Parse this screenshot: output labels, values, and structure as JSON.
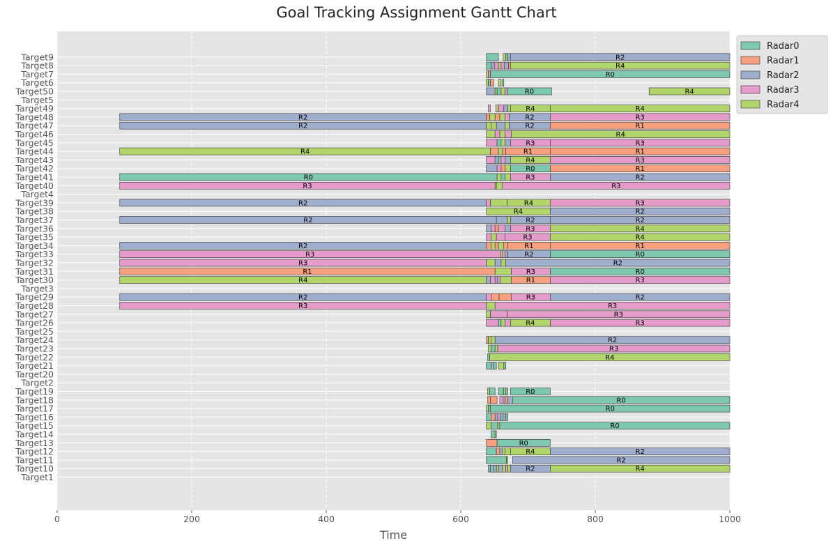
{
  "chart_data": {
    "type": "gantt",
    "title": "Goal Tracking Assignment Gantt Chart",
    "xlabel": "Time",
    "ylabel": "",
    "xlim": [
      0,
      1000
    ],
    "xticks": [
      0,
      200,
      400,
      600,
      800,
      1000
    ],
    "grid": true,
    "legend_position": "top-right",
    "categories": [
      "Target1",
      "Target10",
      "Target11",
      "Target12",
      "Target13",
      "Target14",
      "Target15",
      "Target16",
      "Target17",
      "Target18",
      "Target19",
      "Target2",
      "Target20",
      "Target21",
      "Target22",
      "Target23",
      "Target24",
      "Target25",
      "Target26",
      "Target27",
      "Target28",
      "Target29",
      "Target3",
      "Target30",
      "Target31",
      "Target32",
      "Target33",
      "Target34",
      "Target35",
      "Target36",
      "Target37",
      "Target38",
      "Target39",
      "Target4",
      "Target40",
      "Target41",
      "Target42",
      "Target43",
      "Target44",
      "Target45",
      "Target46",
      "Target47",
      "Target48",
      "Target49",
      "Target5",
      "Target50",
      "Target6",
      "Target7",
      "Target8",
      "Target9"
    ],
    "series": [
      {
        "name": "Radar0",
        "color": "#7fc8b0"
      },
      {
        "name": "Radar1",
        "color": "#f6a07f"
      },
      {
        "name": "Radar2",
        "color": "#a0aece"
      },
      {
        "name": "Radar3",
        "color": "#e69ccb"
      },
      {
        "name": "Radar4",
        "color": "#b2d56b"
      }
    ],
    "bar_labels": [
      "R0",
      "R1",
      "R2",
      "R3",
      "R4"
    ],
    "tasks": {
      "Target9": [
        [
          638,
          656,
          0
        ],
        [
          663,
          667,
          4
        ],
        [
          667,
          670,
          0
        ],
        [
          670,
          674,
          2
        ],
        [
          674,
          1000,
          2,
          "R2"
        ]
      ],
      "Target8": [
        [
          638,
          645,
          0
        ],
        [
          645,
          650,
          2
        ],
        [
          650,
          656,
          3
        ],
        [
          656,
          660,
          4
        ],
        [
          660,
          665,
          3
        ],
        [
          665,
          671,
          2
        ],
        [
          671,
          674,
          1
        ],
        [
          674,
          1000,
          4,
          "R4"
        ]
      ],
      "Target7": [
        [
          638,
          641,
          4
        ],
        [
          641,
          644,
          3
        ],
        [
          644,
          1000,
          0,
          "R0"
        ]
      ],
      "Target6": [
        [
          638,
          641,
          4
        ],
        [
          641,
          644,
          0
        ],
        [
          644,
          649,
          1
        ],
        [
          656,
          660,
          4
        ],
        [
          662,
          664,
          0
        ]
      ],
      "Target50": [
        [
          638,
          651,
          2
        ],
        [
          651,
          654,
          4
        ],
        [
          654,
          660,
          0
        ],
        [
          660,
          666,
          4
        ],
        [
          666,
          669,
          3
        ],
        [
          669,
          735,
          0,
          "R0"
        ],
        [
          880,
          1000,
          4,
          "R4"
        ]
      ],
      "Target49": [
        [
          641,
          644,
          3
        ],
        [
          652,
          656,
          4
        ],
        [
          656,
          664,
          3
        ],
        [
          664,
          670,
          2
        ],
        [
          670,
          674,
          4
        ],
        [
          674,
          733,
          4,
          "R4"
        ],
        [
          733,
          1000,
          4,
          "R4"
        ]
      ],
      "Target48": [
        [
          93,
          638,
          2,
          "R2"
        ],
        [
          638,
          643,
          1
        ],
        [
          643,
          651,
          4
        ],
        [
          651,
          658,
          1
        ],
        [
          658,
          666,
          4
        ],
        [
          666,
          672,
          3
        ],
        [
          672,
          733,
          2,
          "R2"
        ],
        [
          733,
          1000,
          3,
          "R3"
        ]
      ],
      "Target47": [
        [
          93,
          638,
          2,
          "R2"
        ],
        [
          638,
          645,
          4
        ],
        [
          645,
          653,
          4
        ],
        [
          653,
          666,
          2
        ],
        [
          666,
          672,
          4
        ],
        [
          672,
          733,
          2,
          "R2"
        ],
        [
          733,
          1000,
          1,
          "R1"
        ]
      ],
      "Target46": [
        [
          638,
          651,
          4
        ],
        [
          651,
          658,
          3
        ],
        [
          658,
          666,
          4
        ],
        [
          666,
          675,
          3
        ],
        [
          675,
          1000,
          4,
          "R4"
        ]
      ],
      "Target45": [
        [
          638,
          654,
          3
        ],
        [
          654,
          660,
          0
        ],
        [
          660,
          666,
          4
        ],
        [
          666,
          674,
          2
        ],
        [
          674,
          733,
          3,
          "R3"
        ],
        [
          733,
          1000,
          3,
          "R3"
        ]
      ],
      "Target44": [
        [
          93,
          644,
          4,
          "R4"
        ],
        [
          644,
          656,
          1
        ],
        [
          656,
          662,
          4
        ],
        [
          662,
          667,
          1
        ],
        [
          667,
          733,
          1,
          "R1"
        ],
        [
          733,
          1000,
          1,
          "R1"
        ]
      ],
      "Target43": [
        [
          638,
          651,
          3
        ],
        [
          651,
          656,
          2
        ],
        [
          656,
          660,
          0
        ],
        [
          660,
          666,
          3
        ],
        [
          666,
          674,
          2
        ],
        [
          674,
          733,
          4,
          "R4"
        ],
        [
          733,
          1000,
          3,
          "R3"
        ]
      ],
      "Target42": [
        [
          638,
          654,
          2
        ],
        [
          654,
          660,
          3
        ],
        [
          660,
          666,
          1
        ],
        [
          666,
          674,
          4
        ],
        [
          674,
          733,
          0,
          "R0"
        ],
        [
          733,
          1000,
          1,
          "R1"
        ]
      ],
      "Target41": [
        [
          93,
          654,
          0,
          "R0"
        ],
        [
          654,
          660,
          4
        ],
        [
          660,
          666,
          0
        ],
        [
          666,
          674,
          4
        ],
        [
          674,
          733,
          3,
          "R3"
        ],
        [
          733,
          1000,
          2,
          "R2"
        ]
      ],
      "Target40": [
        [
          93,
          651,
          3,
          "R3"
        ],
        [
          651,
          653,
          4
        ],
        [
          653,
          662,
          4
        ],
        [
          662,
          1000,
          3,
          "R3"
        ]
      ],
      "Target39": [
        [
          93,
          638,
          2,
          "R2"
        ],
        [
          638,
          644,
          3
        ],
        [
          644,
          669,
          4
        ],
        [
          669,
          733,
          4,
          "R4"
        ],
        [
          733,
          1000,
          3,
          "R3"
        ]
      ],
      "Target38": [
        [
          638,
          733,
          4,
          "R4"
        ],
        [
          733,
          1000,
          2,
          "R2"
        ]
      ],
      "Target37": [
        [
          93,
          653,
          2,
          "R2"
        ],
        [
          653,
          669,
          2
        ],
        [
          669,
          674,
          4
        ],
        [
          674,
          733,
          2,
          "R2"
        ],
        [
          733,
          1000,
          2,
          "R2"
        ]
      ],
      "Target36": [
        [
          638,
          645,
          2
        ],
        [
          645,
          651,
          3
        ],
        [
          651,
          656,
          1
        ],
        [
          656,
          666,
          3
        ],
        [
          666,
          674,
          2
        ],
        [
          674,
          733,
          3,
          "R3"
        ],
        [
          733,
          1000,
          4,
          "R4"
        ]
      ],
      "Target35": [
        [
          638,
          645,
          3
        ],
        [
          645,
          653,
          4
        ],
        [
          653,
          666,
          3
        ],
        [
          666,
          733,
          3,
          "R3"
        ],
        [
          733,
          1000,
          4,
          "R4"
        ]
      ],
      "Target34": [
        [
          93,
          638,
          2,
          "R2"
        ],
        [
          638,
          645,
          1
        ],
        [
          645,
          651,
          4
        ],
        [
          651,
          656,
          1
        ],
        [
          656,
          664,
          4
        ],
        [
          664,
          670,
          1
        ],
        [
          670,
          733,
          1,
          "R1"
        ],
        [
          733,
          1000,
          1,
          "R1"
        ]
      ],
      "Target33": [
        [
          93,
          659,
          3,
          "R3"
        ],
        [
          659,
          662,
          4
        ],
        [
          662,
          666,
          3
        ],
        [
          666,
          670,
          2
        ],
        [
          670,
          733,
          2,
          "R2"
        ],
        [
          733,
          1000,
          0,
          "R0"
        ]
      ],
      "Target32": [
        [
          93,
          638,
          3,
          "R3"
        ],
        [
          638,
          651,
          4
        ],
        [
          651,
          660,
          2
        ],
        [
          660,
          667,
          4
        ],
        [
          667,
          1000,
          2,
          "R2"
        ]
      ],
      "Target31": [
        [
          93,
          651,
          1,
          "R1"
        ],
        [
          651,
          675,
          4
        ],
        [
          675,
          733,
          3,
          "R3"
        ],
        [
          733,
          1000,
          0,
          "R0"
        ]
      ],
      "Target30": [
        [
          93,
          638,
          4,
          "R4"
        ],
        [
          638,
          644,
          2
        ],
        [
          644,
          651,
          3
        ],
        [
          651,
          655,
          2
        ],
        [
          655,
          659,
          3
        ],
        [
          659,
          675,
          4
        ],
        [
          675,
          733,
          1,
          "R1"
        ],
        [
          733,
          1000,
          3,
          "R3"
        ]
      ],
      "Target29": [
        [
          93,
          638,
          2,
          "R2"
        ],
        [
          638,
          645,
          3
        ],
        [
          645,
          657,
          1
        ],
        [
          657,
          675,
          1
        ],
        [
          675,
          733,
          3,
          "R3"
        ],
        [
          733,
          1000,
          2,
          "R2"
        ]
      ],
      "Target28": [
        [
          93,
          638,
          3,
          "R3"
        ],
        [
          638,
          651,
          4
        ],
        [
          651,
          1000,
          3,
          "R3"
        ]
      ],
      "Target27": [
        [
          638,
          644,
          4
        ],
        [
          644,
          669,
          3
        ],
        [
          669,
          1000,
          3,
          "R3"
        ]
      ],
      "Target26": [
        [
          638,
          656,
          3
        ],
        [
          656,
          660,
          0
        ],
        [
          660,
          666,
          4
        ],
        [
          666,
          674,
          3
        ],
        [
          674,
          733,
          4,
          "R4"
        ],
        [
          733,
          1000,
          3,
          "R3"
        ]
      ],
      "Target24": [
        [
          638,
          641,
          1
        ],
        [
          641,
          645,
          4
        ],
        [
          645,
          651,
          4
        ],
        [
          651,
          1000,
          2,
          "R2"
        ]
      ],
      "Target23": [
        [
          641,
          645,
          4
        ],
        [
          645,
          651,
          0
        ],
        [
          651,
          655,
          4
        ],
        [
          655,
          1000,
          3,
          "R3"
        ]
      ],
      "Target22": [
        [
          640,
          643,
          0
        ],
        [
          643,
          1000,
          4,
          "R4"
        ]
      ],
      "Target21": [
        [
          638,
          645,
          0
        ],
        [
          645,
          649,
          2
        ],
        [
          649,
          653,
          0
        ],
        [
          656,
          664,
          4
        ],
        [
          664,
          667,
          0
        ]
      ],
      "Target19": [
        [
          640,
          643,
          4
        ],
        [
          643,
          651,
          0
        ],
        [
          656,
          664,
          0
        ],
        [
          664,
          667,
          4
        ],
        [
          667,
          670,
          0
        ],
        [
          674,
          733,
          0,
          "R0"
        ]
      ],
      "Target18": [
        [
          640,
          644,
          1
        ],
        [
          644,
          654,
          1
        ],
        [
          658,
          663,
          3
        ],
        [
          663,
          666,
          2
        ],
        [
          666,
          670,
          1
        ],
        [
          670,
          677,
          2
        ],
        [
          677,
          1000,
          0,
          "R0"
        ]
      ],
      "Target17": [
        [
          638,
          641,
          4
        ],
        [
          641,
          644,
          0
        ],
        [
          644,
          1000,
          0,
          "R0"
        ]
      ],
      "Target16": [
        [
          638,
          645,
          0
        ],
        [
          645,
          651,
          1
        ],
        [
          651,
          655,
          2
        ],
        [
          655,
          659,
          3
        ],
        [
          659,
          663,
          0
        ],
        [
          663,
          667,
          2
        ],
        [
          667,
          670,
          0
        ]
      ],
      "Target15": [
        [
          638,
          645,
          4
        ],
        [
          645,
          655,
          0
        ],
        [
          655,
          658,
          4
        ],
        [
          658,
          1000,
          0,
          "R0"
        ]
      ],
      "Target14": [
        [
          645,
          651,
          0
        ],
        [
          651,
          653,
          4
        ]
      ],
      "Target13": [
        [
          638,
          654,
          1
        ],
        [
          654,
          733,
          0,
          "R0"
        ]
      ],
      "Target12": [
        [
          638,
          653,
          0
        ],
        [
          653,
          658,
          1
        ],
        [
          658,
          662,
          2
        ],
        [
          662,
          666,
          4
        ],
        [
          666,
          674,
          4
        ],
        [
          674,
          733,
          4,
          "R4"
        ],
        [
          733,
          1000,
          2,
          "R2"
        ]
      ],
      "Target11": [
        [
          638,
          668,
          0
        ],
        [
          668,
          670,
          4
        ],
        [
          677,
          1000,
          2,
          "R2"
        ]
      ],
      "Target10": [
        [
          641,
          644,
          2
        ],
        [
          644,
          649,
          0
        ],
        [
          649,
          653,
          2
        ],
        [
          653,
          656,
          4
        ],
        [
          656,
          662,
          2
        ],
        [
          662,
          667,
          4
        ],
        [
          667,
          670,
          3
        ],
        [
          670,
          674,
          4
        ],
        [
          674,
          733,
          2,
          "R2"
        ],
        [
          733,
          1000,
          4,
          "R4"
        ]
      ]
    }
  }
}
